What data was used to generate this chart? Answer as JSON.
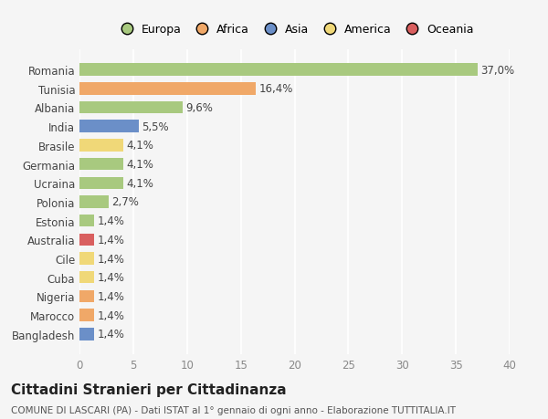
{
  "countries": [
    "Romania",
    "Tunisia",
    "Albania",
    "India",
    "Brasile",
    "Germania",
    "Ucraina",
    "Polonia",
    "Estonia",
    "Australia",
    "Cile",
    "Cuba",
    "Nigeria",
    "Marocco",
    "Bangladesh"
  ],
  "values": [
    37.0,
    16.4,
    9.6,
    5.5,
    4.1,
    4.1,
    4.1,
    2.7,
    1.4,
    1.4,
    1.4,
    1.4,
    1.4,
    1.4,
    1.4
  ],
  "labels": [
    "37,0%",
    "16,4%",
    "9,6%",
    "5,5%",
    "4,1%",
    "4,1%",
    "4,1%",
    "2,7%",
    "1,4%",
    "1,4%",
    "1,4%",
    "1,4%",
    "1,4%",
    "1,4%",
    "1,4%"
  ],
  "continents": [
    "Europa",
    "Africa",
    "Europa",
    "Asia",
    "America",
    "Europa",
    "Europa",
    "Europa",
    "Europa",
    "Oceania",
    "America",
    "America",
    "Africa",
    "Africa",
    "Asia"
  ],
  "continent_colors": {
    "Europa": "#a8c97f",
    "Africa": "#f0a868",
    "Asia": "#6b8fc8",
    "America": "#f0d878",
    "Oceania": "#d95f5f"
  },
  "legend_order": [
    "Europa",
    "Africa",
    "Asia",
    "America",
    "Oceania"
  ],
  "xlim": [
    0,
    40
  ],
  "xticks": [
    0,
    5,
    10,
    15,
    20,
    25,
    30,
    35,
    40
  ],
  "title": "Cittadini Stranieri per Cittadinanza",
  "subtitle": "COMUNE DI LASCARI (PA) - Dati ISTAT al 1° gennaio di ogni anno - Elaborazione TUTTITALIA.IT",
  "background_color": "#f5f5f5",
  "bar_height": 0.65,
  "grid_color": "#ffffff",
  "label_fontsize": 8.5,
  "ytick_fontsize": 8.5,
  "xtick_fontsize": 8.5,
  "title_fontsize": 11,
  "subtitle_fontsize": 7.5,
  "legend_fontsize": 9
}
